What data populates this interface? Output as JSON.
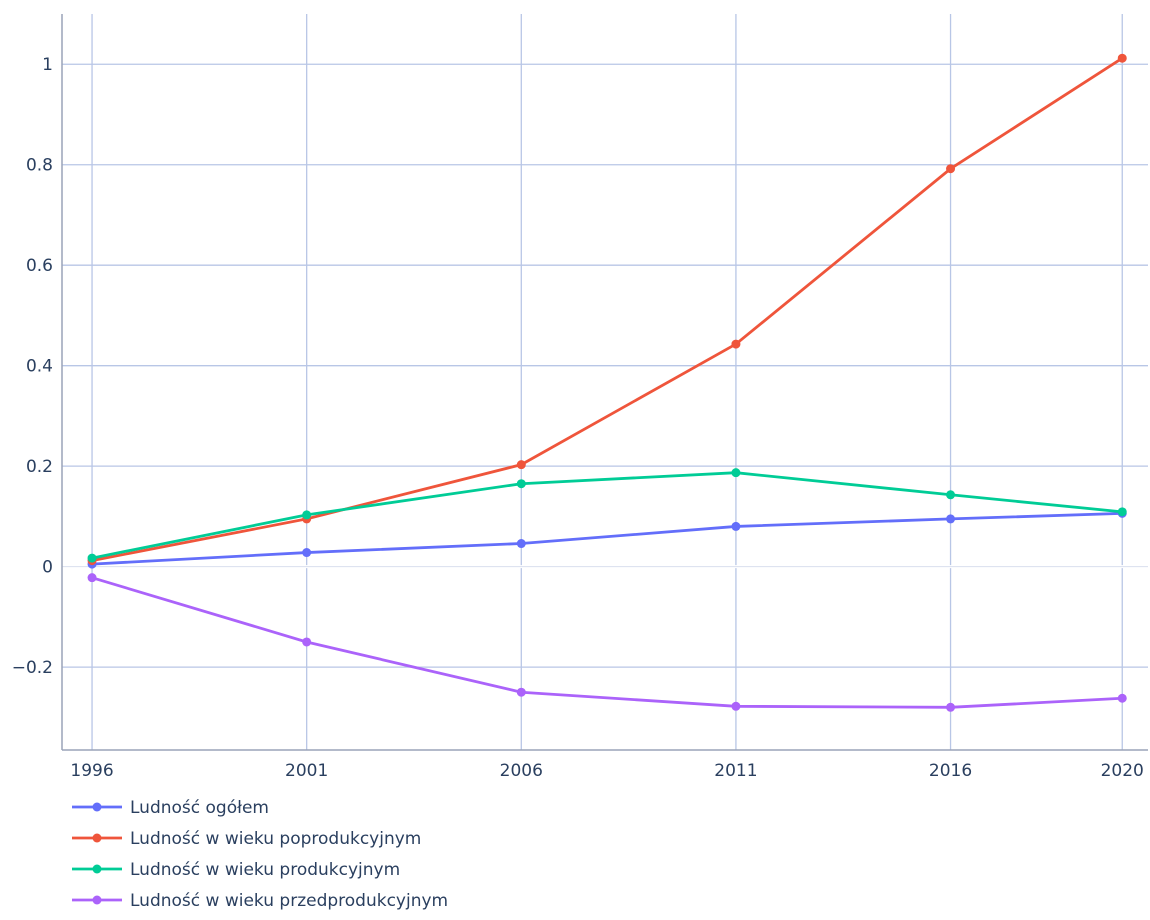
{
  "chart_data": {
    "type": "line",
    "title": "",
    "xlabel": "",
    "ylabel": "",
    "x": [
      "1996",
      "2001",
      "2006",
      "2011",
      "2016",
      "2020"
    ],
    "x_numeric": [
      1996,
      2001,
      2006,
      2011,
      2016,
      2020
    ],
    "xlim": [
      1995.3,
      2020.6
    ],
    "ylim": [
      -0.365,
      1.1
    ],
    "y_ticks": [
      -0.2,
      0,
      0.2,
      0.4,
      0.6,
      0.8,
      1
    ],
    "y_tick_labels": [
      "−0.2",
      "0",
      "0.2",
      "0.4",
      "0.6",
      "0.8",
      "1"
    ],
    "grid": true,
    "legend_position": "bottom-left",
    "series": [
      {
        "name": "Ludność ogółem",
        "color": "#636efa",
        "values": [
          0.005,
          0.028,
          0.046,
          0.08,
          0.095,
          0.106
        ]
      },
      {
        "name": "Ludność w wieku poprodukcyjnym",
        "color": "#ef553b",
        "values": [
          0.012,
          0.095,
          0.203,
          0.443,
          0.792,
          1.012
        ]
      },
      {
        "name": "Ludność w wieku produkcyjnym",
        "color": "#00cc96",
        "values": [
          0.017,
          0.103,
          0.165,
          0.187,
          0.143,
          0.109
        ]
      },
      {
        "name": "Ludność w wieku przedprodukcyjnym",
        "color": "#ab63fa",
        "values": [
          -0.022,
          -0.15,
          -0.25,
          -0.278,
          -0.28,
          -0.262
        ]
      }
    ]
  }
}
